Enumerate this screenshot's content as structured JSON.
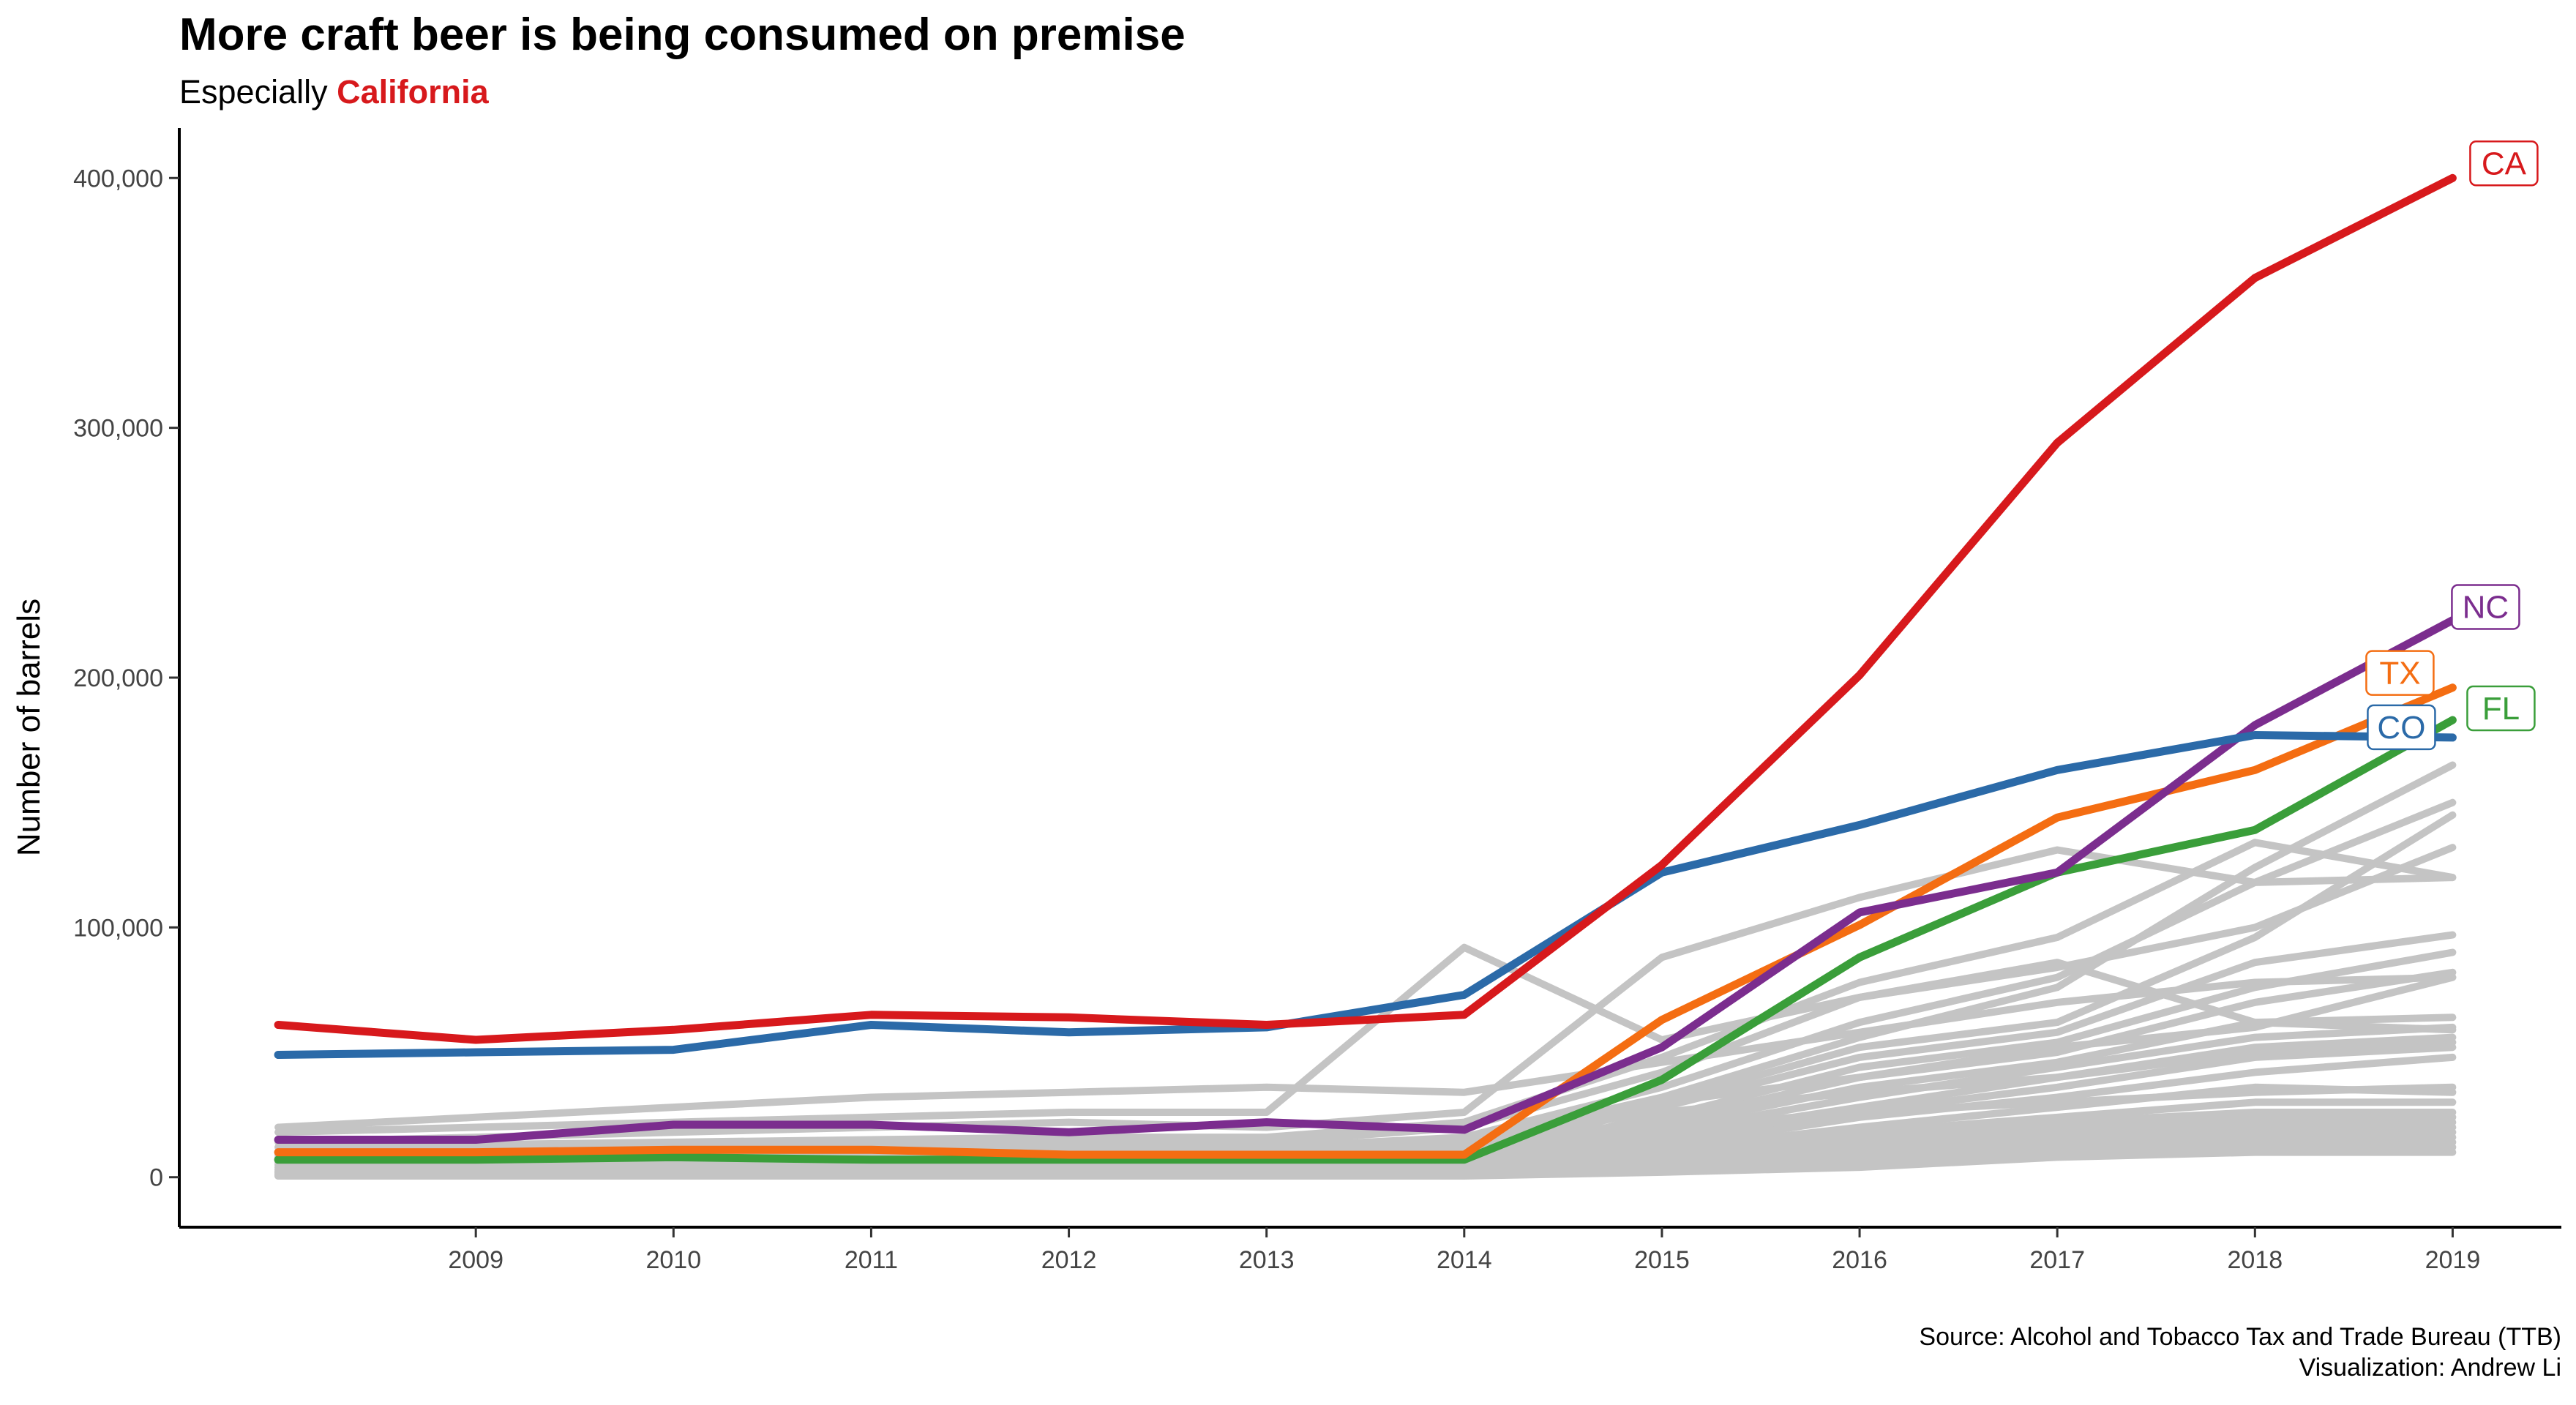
{
  "title": "More craft beer is being consumed on premise",
  "subtitle_prefix": "Especially",
  "subtitle_highlight": "California",
  "caption": {
    "source": "Source: Alcohol and Tobacco Tax and Trade Bureau (TTB)",
    "credit": "Visualization: Andrew Li"
  },
  "chart_data": {
    "type": "line",
    "ylabel": "Number of barrels",
    "xlabel": "",
    "x": [
      2008,
      2009,
      2010,
      2011,
      2012,
      2013,
      2014,
      2015,
      2016,
      2017,
      2018,
      2019
    ],
    "x_ticks": [
      2009,
      2010,
      2011,
      2012,
      2013,
      2014,
      2015,
      2016,
      2017,
      2018,
      2019
    ],
    "xlim": [
      2007.5,
      2019.55
    ],
    "y_ticks": [
      0,
      100000,
      200000,
      300000,
      400000
    ],
    "y_tick_labels": [
      "0",
      "100,000",
      "200,000",
      "300,000",
      "400,000"
    ],
    "ylim": [
      -20000,
      420000
    ],
    "grid": false,
    "highlight_series": [
      {
        "label": "CA",
        "color": "#d7191c",
        "values": [
          61000,
          55000,
          59000,
          65000,
          64000,
          61000,
          65000,
          125000,
          201000,
          294000,
          360000,
          400000
        ]
      },
      {
        "label": "CO",
        "color": "#2b6aa8",
        "values": [
          49000,
          50000,
          51000,
          61000,
          58000,
          60000,
          73000,
          122000,
          141000,
          163000,
          177000,
          176000
        ]
      },
      {
        "label": "NC",
        "color": "#7b2d8e",
        "values": [
          15000,
          15000,
          21000,
          21000,
          18000,
          22000,
          19000,
          52000,
          106000,
          122000,
          181000,
          223000
        ]
      },
      {
        "label": "TX",
        "color": "#f46d12",
        "values": [
          10000,
          10000,
          11000,
          11000,
          9000,
          9000,
          9000,
          63000,
          101000,
          144000,
          163000,
          196000
        ]
      },
      {
        "label": "FL",
        "color": "#3a9e3a",
        "values": [
          7000,
          7000,
          8000,
          7000,
          7000,
          7000,
          7000,
          39000,
          88000,
          122000,
          139000,
          183000
        ]
      }
    ],
    "background_series_color": "#c4c4c4",
    "background_series": [
      [
        20000,
        24000,
        28000,
        32000,
        34000,
        36000,
        34000,
        46000,
        58000,
        70000,
        78000,
        80000
      ],
      [
        18000,
        20000,
        22000,
        24000,
        26000,
        26000,
        92000,
        55000,
        72000,
        86000,
        62000,
        59000
      ],
      [
        14000,
        16000,
        18000,
        20000,
        22000,
        20000,
        26000,
        88000,
        112000,
        131000,
        118000,
        120000
      ],
      [
        12000,
        13000,
        14000,
        15000,
        16000,
        16000,
        22000,
        48000,
        78000,
        96000,
        134000,
        120000
      ],
      [
        10000,
        11000,
        12000,
        13000,
        14000,
        14000,
        20000,
        42000,
        72000,
        84000,
        100000,
        132000
      ],
      [
        9000,
        10000,
        11000,
        12000,
        12000,
        12000,
        16000,
        36000,
        62000,
        80000,
        118000,
        150000
      ],
      [
        8000,
        9000,
        10000,
        10000,
        10000,
        10000,
        14000,
        32000,
        56000,
        76000,
        124000,
        165000
      ],
      [
        7000,
        8000,
        8000,
        9000,
        9000,
        9000,
        12000,
        30000,
        52000,
        62000,
        96000,
        145000
      ],
      [
        6000,
        7000,
        7000,
        8000,
        8000,
        8000,
        10000,
        28000,
        48000,
        58000,
        86000,
        97000
      ],
      [
        6000,
        6000,
        6000,
        7000,
        7000,
        7000,
        9000,
        24000,
        44000,
        54000,
        76000,
        90000
      ],
      [
        5000,
        5000,
        6000,
        6000,
        6000,
        6000,
        8000,
        22000,
        40000,
        50000,
        70000,
        82000
      ],
      [
        5000,
        5000,
        5000,
        5000,
        5000,
        5000,
        7000,
        20000,
        36000,
        46000,
        62000,
        64000
      ],
      [
        4000,
        4000,
        5000,
        5000,
        5000,
        5000,
        6000,
        18000,
        32000,
        44000,
        56000,
        60000
      ],
      [
        4000,
        4000,
        4000,
        4000,
        4000,
        4000,
        5000,
        16000,
        28000,
        40000,
        52000,
        56000
      ],
      [
        3000,
        3000,
        4000,
        4000,
        4000,
        4000,
        5000,
        14000,
        26000,
        36000,
        48000,
        52000
      ],
      [
        3000,
        3000,
        3000,
        3000,
        3000,
        3000,
        4000,
        12000,
        24000,
        32000,
        42000,
        48000
      ],
      [
        2000,
        2000,
        3000,
        3000,
        3000,
        3000,
        4000,
        11000,
        20000,
        28000,
        36000,
        34000
      ],
      [
        2000,
        2000,
        2000,
        2000,
        2000,
        2000,
        3000,
        10000,
        18000,
        24000,
        30000,
        30000
      ],
      [
        2000,
        2000,
        2000,
        2000,
        2000,
        2000,
        3000,
        9000,
        16000,
        22000,
        26000,
        26000
      ],
      [
        1000,
        1000,
        2000,
        2000,
        2000,
        2000,
        2000,
        8000,
        14000,
        20000,
        24000,
        24000
      ],
      [
        1000,
        1000,
        1000,
        1000,
        1000,
        1000,
        2000,
        7000,
        12000,
        18000,
        22000,
        22000
      ],
      [
        1000,
        1000,
        1000,
        1000,
        1000,
        1000,
        2000,
        6000,
        10000,
        16000,
        20000,
        20000
      ],
      [
        1000,
        1000,
        1000,
        1000,
        1000,
        1000,
        1000,
        5000,
        9000,
        14000,
        18000,
        18000
      ],
      [
        1000,
        1000,
        1000,
        1000,
        1000,
        1000,
        1000,
        4000,
        8000,
        12000,
        16000,
        16000
      ],
      [
        500,
        500,
        500,
        500,
        500,
        500,
        1000,
        3000,
        6000,
        10000,
        14000,
        14000
      ],
      [
        500,
        500,
        500,
        500,
        500,
        500,
        1000,
        3000,
        5000,
        9000,
        12000,
        12000
      ],
      [
        500,
        500,
        500,
        500,
        500,
        500,
        500,
        2000,
        4000,
        8000,
        10000,
        10000
      ],
      [
        3000,
        3000,
        3000,
        4000,
        4000,
        4000,
        5000,
        30000,
        40000,
        52000,
        60000,
        80000
      ],
      [
        2000,
        2000,
        2000,
        3000,
        3000,
        3000,
        4000,
        26000,
        34000,
        40000,
        50000,
        54000
      ],
      [
        2000,
        2000,
        2000,
        2000,
        2000,
        2000,
        3000,
        20000,
        26000,
        30000,
        34000,
        36000
      ]
    ]
  }
}
